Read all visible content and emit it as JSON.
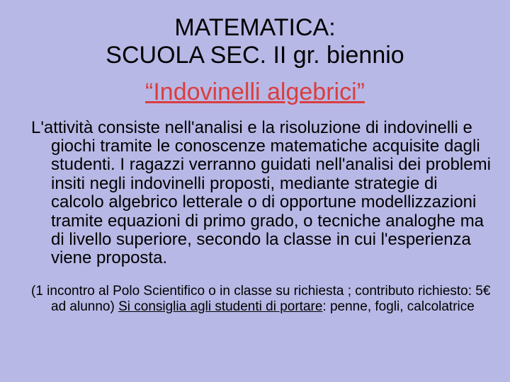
{
  "slide": {
    "background_color": "#b8b8e6",
    "heading_line1": "MATEMATICA:",
    "heading_line2": "SCUOLA SEC. II gr. biennio",
    "heading_color": "#000000",
    "heading_fontsize": 34,
    "subtitle": "“Indovinelli algebrici”",
    "subtitle_color": "#d93e3e",
    "subtitle_fontsize": 34,
    "subtitle_underline": true,
    "body": "L'attività consiste nell'analisi e la risoluzione di indovinelli e giochi tramite le conoscenze matematiche acquisite dagli studenti. I ragazzi verranno guidati nell'analisi dei problemi insiti negli indovinelli proposti, mediante strategie di calcolo algebrico letterale o di opportune modellizzazioni tramite equazioni di primo grado, o tecniche analoghe ma di livello superiore, secondo la classe in cui l'esperienza viene proposta.",
    "body_color": "#000000",
    "body_fontsize": 24,
    "footnote_prefix": "(1 incontro al Polo Scientifico o in classe su richiesta ; contributo richiesto: 5€ ad alunno)   ",
    "footnote_underlined": "Si consiglia agli studenti di portare",
    "footnote_suffix": ": penne, fogli, calcolatrice",
    "footnote_fontsize": 19
  }
}
